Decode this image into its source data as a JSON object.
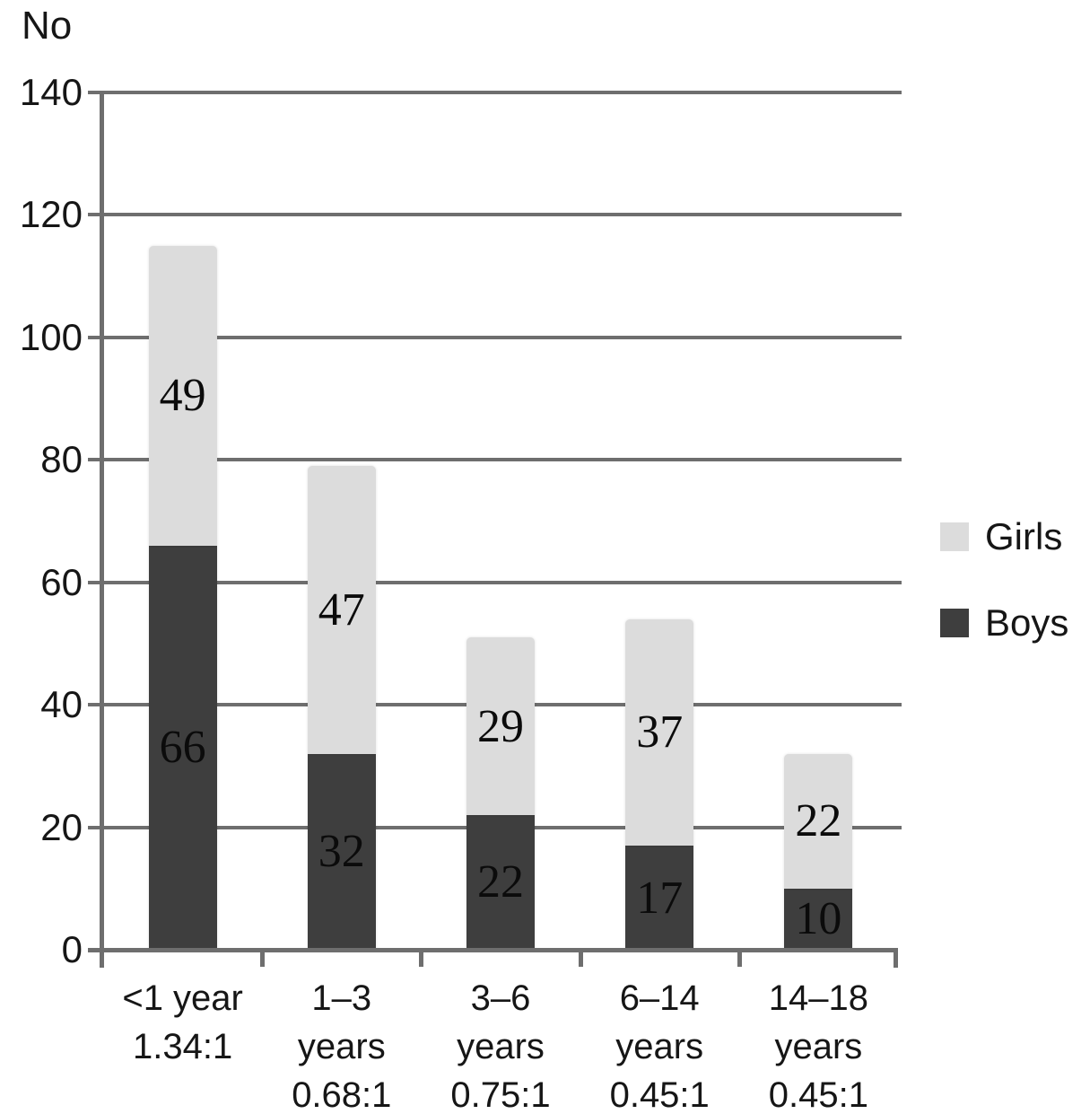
{
  "figure": {
    "y_axis_title": "No"
  },
  "y_axis": {
    "tick_labels": [
      "140",
      "120",
      "100",
      "80",
      "60",
      "40",
      "20",
      "0"
    ]
  },
  "legend": {
    "items": [
      {
        "label": "Girls",
        "color": "#dcdcdc"
      },
      {
        "label": "Boys",
        "color": "#3e3e3e"
      }
    ]
  },
  "chart_data": {
    "type": "bar",
    "stacked": true,
    "title": "",
    "ylabel": "No",
    "xlabel": "",
    "ylim": [
      0,
      140
    ],
    "ytick_step": 20,
    "grid": true,
    "legend_position": "right",
    "categories": [
      "<1 year\n1.34:1",
      "1–3\nyears\n0.68:1",
      "3–6\nyears\n0.75:1",
      "6–14\nyears\n0.45:1",
      "14–18\nyears\n0.45:1"
    ],
    "series": [
      {
        "name": "Girls",
        "color": "#dcdcdc",
        "stack_index": 1,
        "values": [
          49,
          47,
          29,
          37,
          22
        ]
      },
      {
        "name": "Boys",
        "color": "#3e3e3e",
        "stack_index": 0,
        "values": [
          66,
          32,
          22,
          17,
          10
        ]
      }
    ],
    "totals": [
      115,
      79,
      51,
      54,
      32
    ],
    "colors": {
      "gridline": "#6e6e6e",
      "axis": "#6e6e6e",
      "value_label": "#0b0b0b",
      "tick_label": "#161616"
    }
  }
}
